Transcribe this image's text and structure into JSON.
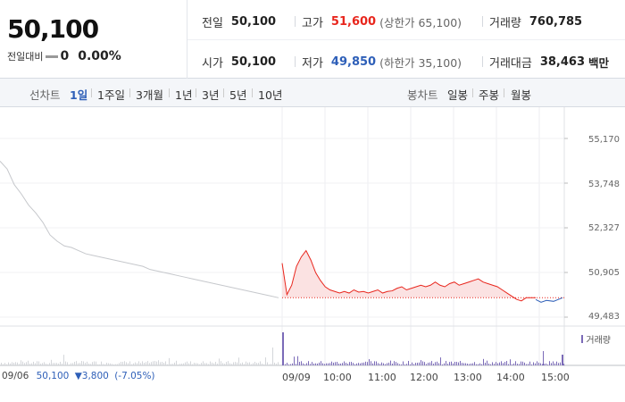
{
  "quote": {
    "price": "50,100",
    "change_label": "전일대비",
    "change_value": "0",
    "change_percent": "0.00%"
  },
  "info": {
    "prev_close": {
      "label": "전일",
      "value": "50,100"
    },
    "high": {
      "label": "고가",
      "value": "51,600",
      "sub": "(상한가 65,100)",
      "color": "#e8261d"
    },
    "volume": {
      "label": "거래량",
      "value": "760,785"
    },
    "open": {
      "label": "시가",
      "value": "50,100"
    },
    "low": {
      "label": "저가",
      "value": "49,850",
      "sub": "(하한가 35,100)",
      "color": "#2e5fb8"
    },
    "amount": {
      "label": "거래대금",
      "value": "38,463",
      "unit": "백만"
    }
  },
  "tabs": {
    "line_label": "선차트",
    "line_periods": [
      "1일",
      "1주일",
      "3개월",
      "1년",
      "3년",
      "5년",
      "10년"
    ],
    "active_period": "1일",
    "candle_label": "봉차트",
    "candle_periods": [
      "일봉",
      "주봉",
      "월봉"
    ]
  },
  "chart": {
    "y_ticks": [
      "55,170",
      "53,748",
      "52,327",
      "50,905",
      "49,483"
    ],
    "x_ticks": [
      "09/09",
      "10:00",
      "11:00",
      "12:00",
      "13:00",
      "14:00",
      "15:00"
    ],
    "volume_legend": "거래량",
    "prev_day": {
      "date": "09/06",
      "close": "50,100",
      "change": "▼3,800",
      "change_pct": "(-7.05%)"
    },
    "colors": {
      "today_line": "#e8261d",
      "today_fill": "#fbe2e2",
      "prev_line": "#c6c8cc",
      "volume": "#7b6bb8",
      "base_line": "#e8261d",
      "below": "#2e5fb8"
    }
  },
  "chart_data": {
    "type": "line",
    "ylim": [
      49483,
      55170
    ],
    "base_price": 50100,
    "series": [
      {
        "values": [
          54450,
          54200,
          53700,
          53400,
          53050,
          52800,
          52500,
          52100,
          51900,
          51750,
          51700,
          51600,
          51500,
          51450,
          51400,
          51350,
          51300,
          51250,
          51200,
          51150,
          51100,
          51000,
          50950,
          50900,
          50850,
          50800,
          50750,
          50700,
          50650,
          50600,
          50550,
          50500,
          50450,
          50400,
          50350,
          50300,
          50250,
          50200,
          50150,
          50100
        ]
      },
      {
        "values": [
          51200,
          50200,
          50500,
          51100,
          51400,
          51600,
          51300,
          50900,
          50650,
          50450,
          50350,
          50300,
          50250,
          50300,
          50250,
          50350,
          50280,
          50300,
          50250,
          50300,
          50350,
          50250,
          50300,
          50320,
          50400,
          50450,
          50350,
          50400,
          50450,
          50500,
          50450,
          50500,
          50600,
          50500,
          50450,
          50550,
          50600,
          50500,
          50550,
          50600,
          50650,
          50700,
          50600,
          50550,
          50500,
          50450,
          50350,
          50250,
          50150,
          50050,
          50000,
          50100,
          50100,
          50100
        ]
      }
    ]
  }
}
